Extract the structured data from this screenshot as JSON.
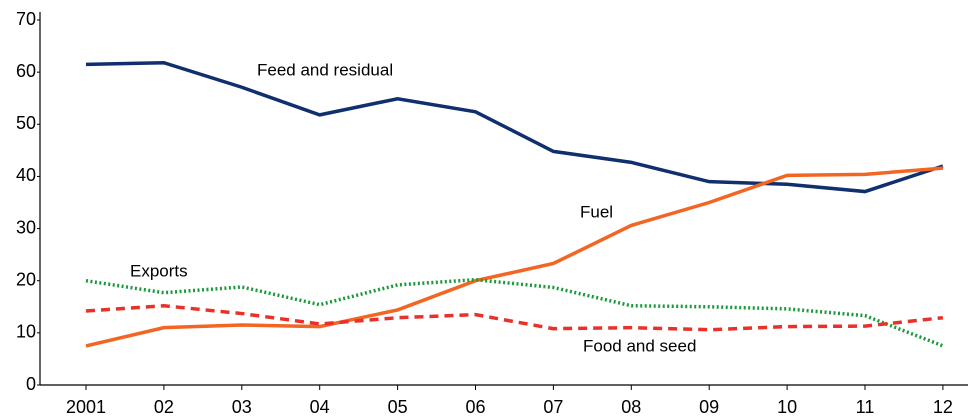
{
  "chart_data": {
    "type": "line",
    "categories": [
      "2001",
      "02",
      "03",
      "04",
      "05",
      "06",
      "07",
      "08",
      "09",
      "10",
      "11",
      "12"
    ],
    "series": [
      {
        "name": "Feed and residual",
        "color": "#0f2f6e",
        "style": "solid",
        "values": [
          61.5,
          61.8,
          57.1,
          51.8,
          54.9,
          52.4,
          44.8,
          42.7,
          39.0,
          38.5,
          37.1,
          42.0
        ]
      },
      {
        "name": "Fuel",
        "color": "#f26522",
        "style": "solid",
        "values": [
          7.5,
          11.0,
          11.5,
          11.2,
          14.4,
          20.0,
          23.3,
          30.6,
          35.0,
          40.2,
          40.4,
          41.6
        ]
      },
      {
        "name": "Exports",
        "color": "#1a9a3a",
        "style": "dotted",
        "values": [
          20.0,
          17.7,
          18.8,
          15.4,
          19.2,
          20.2,
          18.7,
          15.2,
          15.0,
          14.6,
          13.3,
          7.5
        ]
      },
      {
        "name": "Food and seed",
        "color": "#e8312a",
        "style": "dashed",
        "values": [
          14.2,
          15.2,
          13.7,
          11.7,
          12.9,
          13.5,
          10.8,
          11.0,
          10.6,
          11.2,
          11.3,
          12.9
        ]
      }
    ],
    "ylim": [
      0,
      70
    ],
    "yticks": [
      0,
      10,
      20,
      30,
      40,
      50,
      60,
      70
    ],
    "grid": false
  }
}
